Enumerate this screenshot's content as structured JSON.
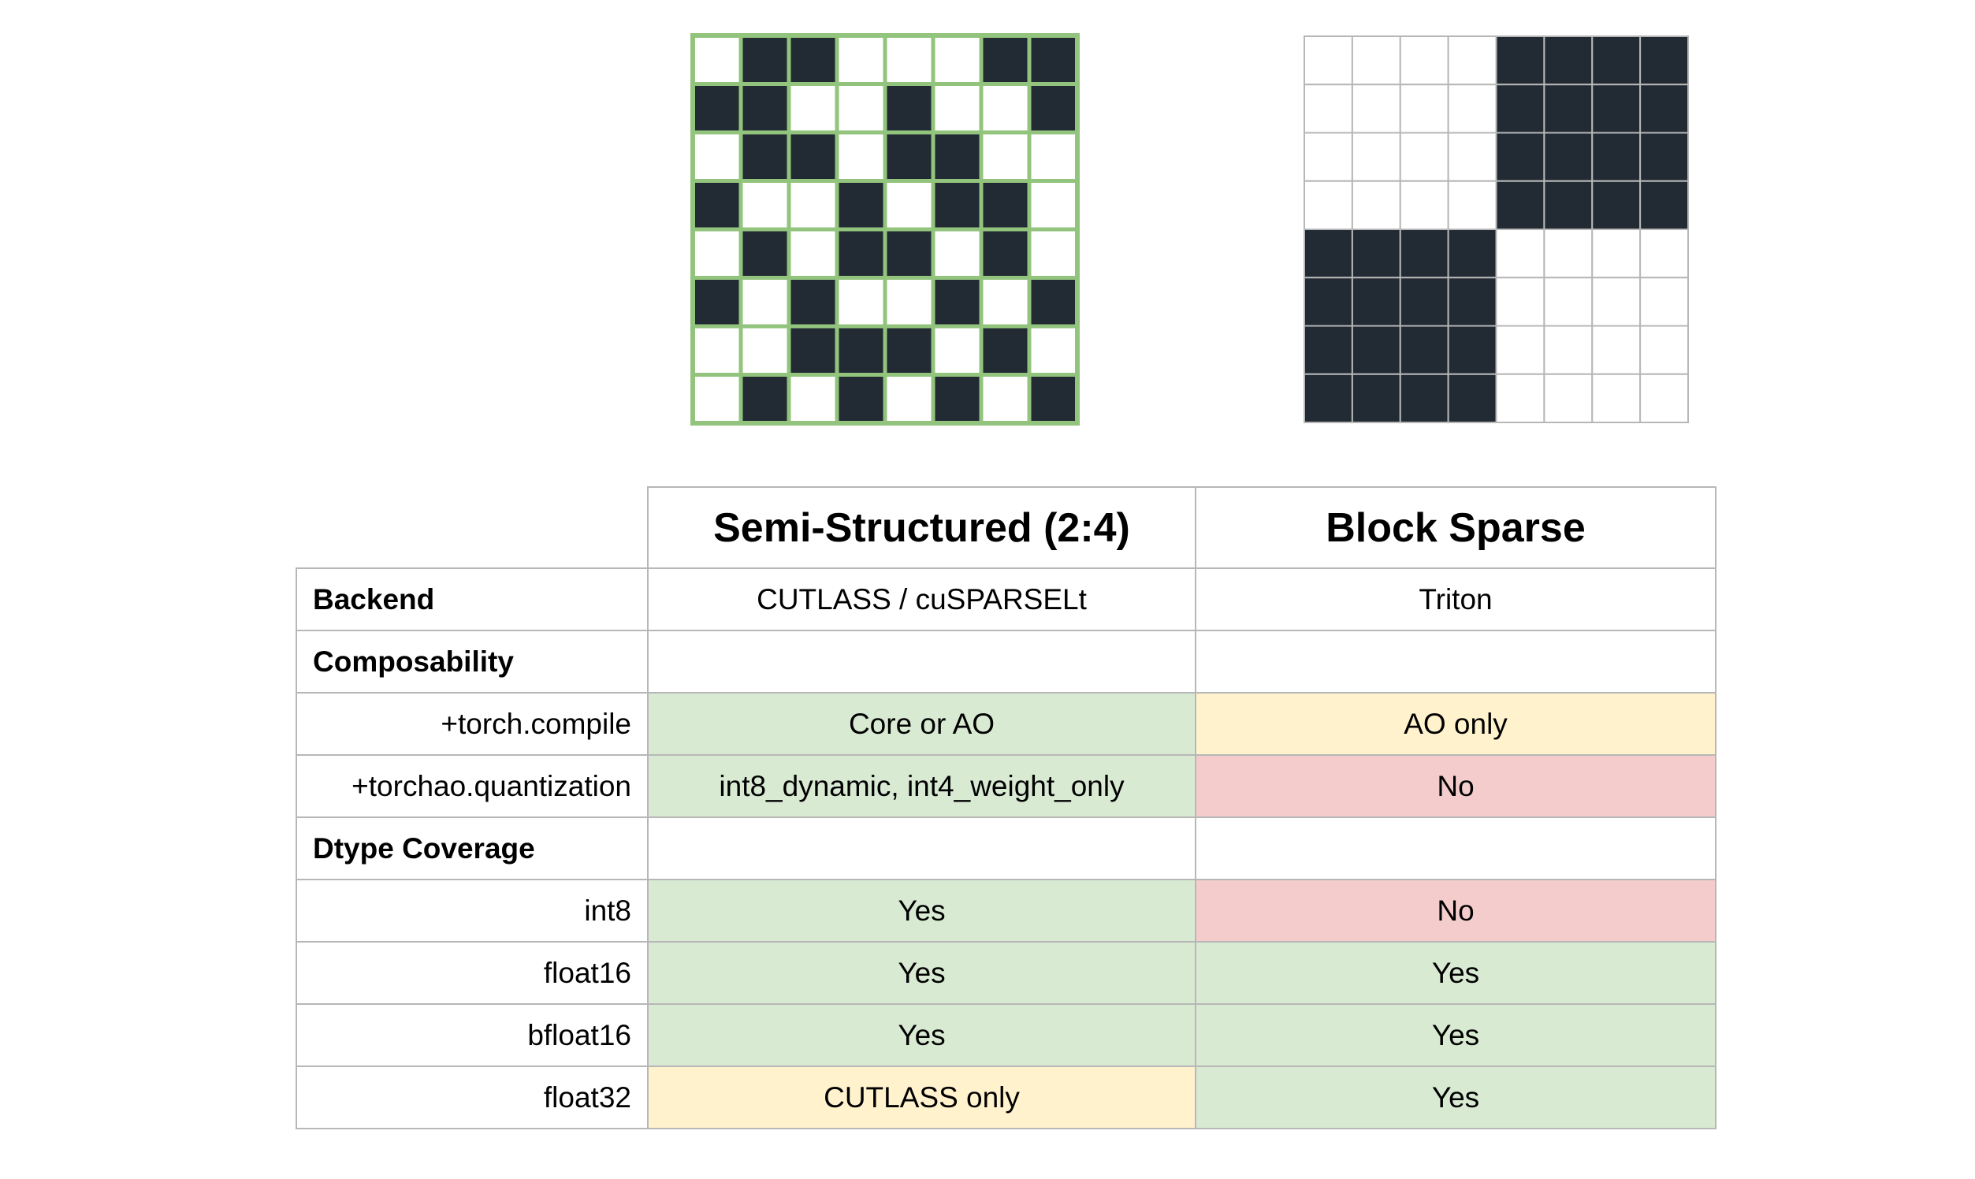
{
  "palette": {
    "dark_cell": "#222a33",
    "light_cell": "#ffffff",
    "semi_grid_line": "#93c47d",
    "block_grid_line": "#b7b7b7",
    "cell_green": "#d9ead3",
    "cell_yellow": "#fff2cc",
    "cell_red": "#f4cccc"
  },
  "patterns": {
    "semi_structured": [
      [
        0,
        1,
        1,
        0,
        0,
        0,
        1,
        1
      ],
      [
        1,
        1,
        0,
        0,
        1,
        0,
        0,
        1
      ],
      [
        0,
        1,
        1,
        0,
        1,
        1,
        0,
        0
      ],
      [
        1,
        0,
        0,
        1,
        0,
        1,
        1,
        0
      ],
      [
        0,
        1,
        0,
        1,
        1,
        0,
        1,
        0
      ],
      [
        1,
        0,
        1,
        0,
        0,
        1,
        0,
        1
      ],
      [
        0,
        0,
        1,
        1,
        1,
        0,
        1,
        0
      ],
      [
        0,
        1,
        0,
        1,
        0,
        1,
        0,
        1
      ]
    ],
    "block_sparse": [
      [
        0,
        0,
        0,
        0,
        1,
        1,
        1,
        1
      ],
      [
        0,
        0,
        0,
        0,
        1,
        1,
        1,
        1
      ],
      [
        0,
        0,
        0,
        0,
        1,
        1,
        1,
        1
      ],
      [
        0,
        0,
        0,
        0,
        1,
        1,
        1,
        1
      ],
      [
        1,
        1,
        1,
        1,
        0,
        0,
        0,
        0
      ],
      [
        1,
        1,
        1,
        1,
        0,
        0,
        0,
        0
      ],
      [
        1,
        1,
        1,
        1,
        0,
        0,
        0,
        0
      ],
      [
        1,
        1,
        1,
        1,
        0,
        0,
        0,
        0
      ]
    ]
  },
  "table": {
    "headers": [
      "Semi-Structured (2:4)",
      "Block Sparse"
    ],
    "rows": [
      {
        "label": "Backend",
        "kind": "section",
        "cells": [
          {
            "text": "CUTLASS / cuSPARSELt",
            "status": "none"
          },
          {
            "text": "Triton",
            "status": "none"
          }
        ]
      },
      {
        "label": "Composability",
        "kind": "section",
        "cells": [
          {
            "text": "",
            "status": "none"
          },
          {
            "text": "",
            "status": "none"
          }
        ]
      },
      {
        "label": "+torch.compile",
        "kind": "sub",
        "cells": [
          {
            "text": "Core or AO",
            "status": "green"
          },
          {
            "text": "AO only",
            "status": "yellow"
          }
        ]
      },
      {
        "label": "+torchao.quantization",
        "kind": "sub",
        "cells": [
          {
            "text": "int8_dynamic, int4_weight_only",
            "status": "green"
          },
          {
            "text": "No",
            "status": "red"
          }
        ]
      },
      {
        "label": "Dtype Coverage",
        "kind": "section",
        "cells": [
          {
            "text": "",
            "status": "none"
          },
          {
            "text": "",
            "status": "none"
          }
        ]
      },
      {
        "label": "int8",
        "kind": "sub",
        "cells": [
          {
            "text": "Yes",
            "status": "green"
          },
          {
            "text": "No",
            "status": "red"
          }
        ]
      },
      {
        "label": "float16",
        "kind": "sub",
        "cells": [
          {
            "text": "Yes",
            "status": "green"
          },
          {
            "text": "Yes",
            "status": "green"
          }
        ]
      },
      {
        "label": "bfloat16",
        "kind": "sub",
        "cells": [
          {
            "text": "Yes",
            "status": "green"
          },
          {
            "text": "Yes",
            "status": "green"
          }
        ]
      },
      {
        "label": "float32",
        "kind": "sub",
        "cells": [
          {
            "text": "CUTLASS only",
            "status": "yellow"
          },
          {
            "text": "Yes",
            "status": "green"
          }
        ]
      }
    ]
  }
}
